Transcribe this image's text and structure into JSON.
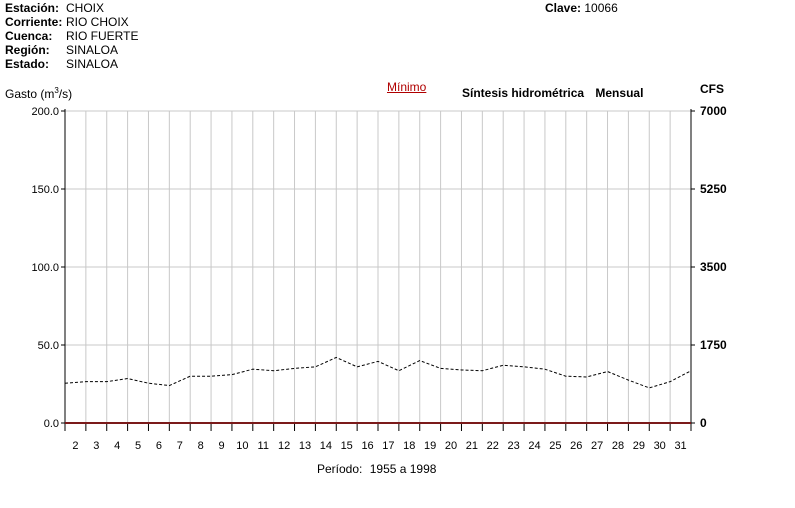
{
  "station": [
    {
      "label": "Estación:",
      "value": "CHOIX"
    },
    {
      "label": "Corriente:",
      "value": "RIO CHOIX"
    },
    {
      "label": "Cuenca:",
      "value": "RIO FUERTE"
    },
    {
      "label": "Región:",
      "value": "SINALOA"
    },
    {
      "label": "Estado:",
      "value": "SINALOA"
    }
  ],
  "clave": {
    "label": "Clave:",
    "value": "10066"
  },
  "minimo_link": "Mínimo",
  "synthesis": {
    "title": "Síntesis hidrométrica",
    "mode": "Mensual"
  },
  "period": {
    "label": "Período:",
    "value": "1955 a 1998"
  },
  "chart_data": {
    "type": "line",
    "ylabel": "Gasto (m³/s)",
    "ylabel_left_text": "Gasto (m",
    "ylabel_left_sup": "3",
    "ylabel_left_tail": "/s)",
    "ylabel_right": "CFS",
    "ylim": [
      0,
      200
    ],
    "y_ticks": [
      "0.0",
      "50.0",
      "100.0",
      "150.0",
      "200.0"
    ],
    "y_ticks_right": [
      "0",
      "1750",
      "3500",
      "5250",
      "7000"
    ],
    "x": [
      1,
      2,
      3,
      4,
      5,
      6,
      7,
      8,
      9,
      10,
      11,
      12,
      13,
      14,
      15,
      16,
      17,
      18,
      19,
      20,
      21,
      22,
      23,
      24,
      25,
      26,
      27,
      28,
      29,
      30,
      31
    ],
    "x_tick_labels": [
      "2",
      "3",
      "4",
      "5",
      "6",
      "7",
      "8",
      "9",
      "10",
      "11",
      "12",
      "13",
      "14",
      "15",
      "16",
      "17",
      "18",
      "19",
      "20",
      "21",
      "22",
      "23",
      "24",
      "25",
      "26",
      "27",
      "28",
      "29",
      "30",
      "31"
    ],
    "grid": true,
    "series": [
      {
        "style": "dashed",
        "color": "#000000",
        "values": [
          25.5,
          26.5,
          26.5,
          28.5,
          25.5,
          24.0,
          30.0,
          30.0,
          31.0,
          34.5,
          33.5,
          35.0,
          36.0,
          42.0,
          36.0,
          39.5,
          33.5,
          40.0,
          35.0,
          34.0,
          33.5,
          37.0,
          36.0,
          34.5,
          30.0,
          29.5,
          33.0,
          27.5,
          22.5,
          26.5,
          33.5
        ]
      },
      {
        "style": "solid",
        "color": "#7b1a1a",
        "values": [
          0,
          0,
          0,
          0,
          0,
          0,
          0,
          0,
          0,
          0,
          0,
          0,
          0,
          0,
          0,
          0,
          0,
          0,
          0,
          0,
          0,
          0,
          0,
          0,
          0,
          0,
          0,
          0,
          0,
          0,
          0
        ]
      }
    ]
  }
}
